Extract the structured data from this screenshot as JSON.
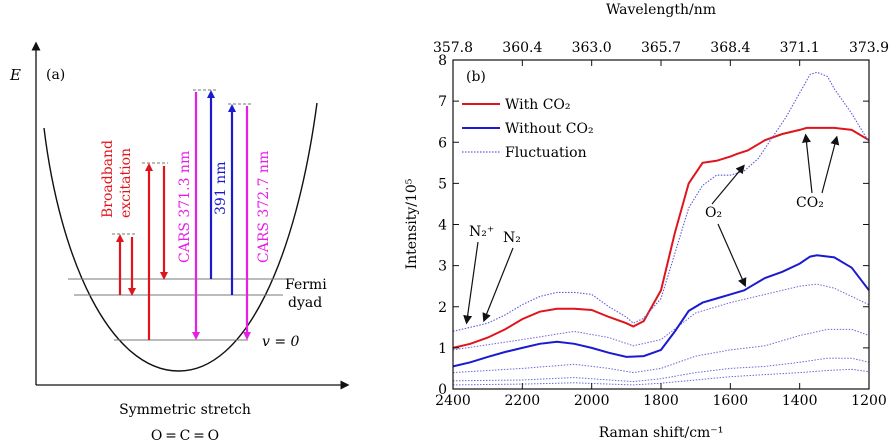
{
  "panel_a": {
    "label": "(a)",
    "axis_label": "E",
    "xlabel": "Symmetric stretch",
    "molecule": "O = C = O",
    "text_broadband_1": "Broadband",
    "text_broadband_2": "excitation",
    "text_cars1": "CARS 371.3 nm",
    "text_391": "391 nm",
    "text_cars2": "CARS 372.7 nm",
    "text_fermi_1": "Fermi",
    "text_fermi_2": "dyad",
    "text_v0": "v = 0",
    "colors": {
      "red": "#e0141c",
      "magenta": "#e61ee6",
      "blue": "#1a1ad0"
    }
  },
  "panel_b": {
    "label": "(b)",
    "ann_n2plus": "N₂⁺",
    "ann_n2": "N₂",
    "ann_o2": "O₂",
    "ann_co2": "CO₂",
    "chart_data": {
      "type": "line",
      "xlabel": "Raman shift/cm⁻¹",
      "ylabel": "Intensity/10⁵",
      "top_xlabel": "Wavelength/nm",
      "xlim": [
        2400,
        1200
      ],
      "ylim": [
        0,
        8
      ],
      "x_ticks": [
        2400,
        2200,
        2000,
        1800,
        1600,
        1400,
        1200
      ],
      "y_ticks": [
        0,
        1,
        2,
        3,
        4,
        5,
        6,
        7,
        8
      ],
      "top_ticks": [
        "357.8",
        "360.4",
        "363.0",
        "365.7",
        "368.4",
        "371.1",
        "373.9"
      ],
      "legend_position": "top-left",
      "series": [
        {
          "name": "With CO₂",
          "color": "#e0141c",
          "x": [
            2400,
            2350,
            2300,
            2250,
            2200,
            2150,
            2100,
            2050,
            2000,
            1950,
            1900,
            1880,
            1850,
            1800,
            1760,
            1720,
            1680,
            1640,
            1600,
            1580,
            1550,
            1520,
            1500,
            1450,
            1400,
            1380,
            1350,
            1300,
            1250,
            1200
          ],
          "y": [
            1.0,
            1.1,
            1.25,
            1.45,
            1.7,
            1.88,
            1.95,
            1.95,
            1.92,
            1.75,
            1.6,
            1.52,
            1.65,
            2.4,
            3.8,
            5.0,
            5.5,
            5.55,
            5.65,
            5.72,
            5.8,
            5.95,
            6.05,
            6.2,
            6.3,
            6.35,
            6.35,
            6.35,
            6.3,
            6.05
          ]
        },
        {
          "name": "Without CO₂",
          "color": "#1a1ad0",
          "x": [
            2400,
            2350,
            2300,
            2250,
            2200,
            2150,
            2100,
            2050,
            2000,
            1950,
            1900,
            1850,
            1800,
            1760,
            1720,
            1680,
            1640,
            1600,
            1560,
            1540,
            1500,
            1450,
            1400,
            1370,
            1350,
            1300,
            1250,
            1200
          ],
          "y": [
            0.55,
            0.65,
            0.78,
            0.9,
            1.0,
            1.1,
            1.15,
            1.1,
            1.0,
            0.88,
            0.78,
            0.8,
            0.95,
            1.4,
            1.9,
            2.1,
            2.2,
            2.3,
            2.4,
            2.5,
            2.7,
            2.85,
            3.05,
            3.22,
            3.25,
            3.2,
            2.95,
            2.4
          ]
        },
        {
          "name": "Fluctuation",
          "color": "#5a5ad8",
          "x": [
            2400,
            2350,
            2300,
            2250,
            2200,
            2150,
            2100,
            2050,
            2000,
            1950,
            1900,
            1880,
            1850,
            1800,
            1760,
            1720,
            1680,
            1640,
            1600,
            1560,
            1520,
            1480,
            1440,
            1400,
            1370,
            1350,
            1320,
            1300,
            1250,
            1200
          ],
          "y": [
            1.4,
            1.5,
            1.6,
            1.8,
            2.05,
            2.25,
            2.35,
            2.35,
            2.3,
            2.0,
            1.75,
            1.6,
            1.72,
            2.2,
            3.3,
            4.4,
            4.95,
            5.2,
            5.2,
            5.3,
            5.6,
            6.1,
            6.6,
            7.2,
            7.65,
            7.7,
            7.6,
            7.3,
            6.7,
            6.0
          ]
        }
      ],
      "extra_fluctuation_curves": [
        {
          "x": [
            2400,
            2200,
            2050,
            1950,
            1880,
            1800,
            1700,
            1600,
            1500,
            1400,
            1350,
            1300,
            1200
          ],
          "y": [
            0.95,
            1.2,
            1.4,
            1.25,
            1.05,
            1.2,
            1.85,
            2.1,
            2.3,
            2.5,
            2.55,
            2.45,
            2.05
          ]
        },
        {
          "x": [
            2400,
            2200,
            2050,
            1950,
            1880,
            1800,
            1700,
            1600,
            1500,
            1400,
            1320,
            1250,
            1200
          ],
          "y": [
            0.4,
            0.5,
            0.6,
            0.5,
            0.4,
            0.5,
            0.8,
            0.95,
            1.05,
            1.3,
            1.45,
            1.45,
            1.3
          ]
        },
        {
          "x": [
            2400,
            2200,
            2050,
            1950,
            1880,
            1800,
            1700,
            1600,
            1500,
            1400,
            1320,
            1250,
            1200
          ],
          "y": [
            0.2,
            0.22,
            0.28,
            0.22,
            0.18,
            0.25,
            0.4,
            0.5,
            0.55,
            0.65,
            0.75,
            0.75,
            0.65
          ]
        },
        {
          "x": [
            2400,
            2200,
            2050,
            1950,
            1880,
            1800,
            1700,
            1600,
            1500,
            1400,
            1320,
            1250,
            1200
          ],
          "y": [
            0.1,
            0.12,
            0.15,
            0.12,
            0.1,
            0.14,
            0.22,
            0.3,
            0.35,
            0.4,
            0.45,
            0.48,
            0.42
          ]
        }
      ]
    }
  }
}
